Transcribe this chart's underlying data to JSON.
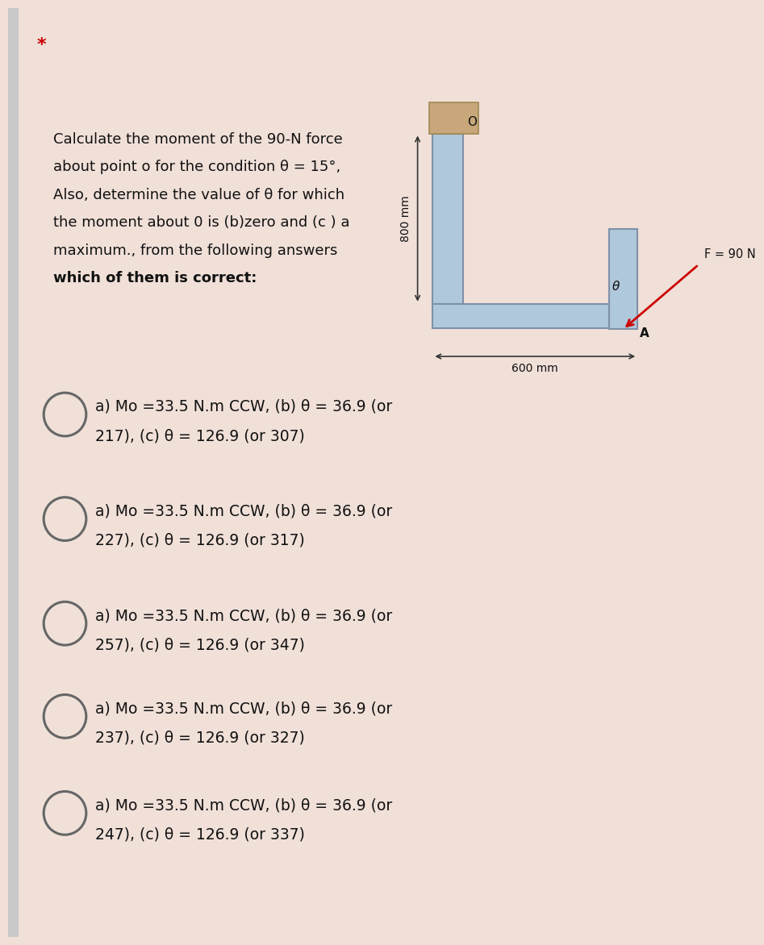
{
  "page_bg_color": "#f0e0d8",
  "card_bg_color": "#ffffff",
  "star_text": "*",
  "star_color": "#cc0000",
  "problem_lines": [
    [
      "Calculate the moment of the 90-N force",
      false
    ],
    [
      "about point o for the condition θ = 15°,",
      false
    ],
    [
      "Also, determine the value of θ for which",
      false
    ],
    [
      "the moment about 0 is (b)zero and (c ) a",
      false
    ],
    [
      "maximum., from the following answers",
      false
    ],
    [
      "which of them is correct:",
      true
    ]
  ],
  "options": [
    [
      "a) Mo =33.5 N.m CCW, (b) θ = 36.9 (or",
      "217), (c) θ = 126.9 (or 307)"
    ],
    [
      "a) Mo =33.5 N.m CCW, (b) θ = 36.9 (or",
      "227), (c) θ = 126.9 (or 317)"
    ],
    [
      "a) Mo =33.5 N.m CCW, (b) θ = 36.9 (or",
      "257), (c) θ = 126.9 (or 347)"
    ],
    [
      "a) Mo =33.5 N.m CCW, (b) θ = 36.9 (or",
      "237), (c) θ = 126.9 (or 327)"
    ],
    [
      "a) Mo =33.5 N.m CCW, (b) θ = 36.9 (or",
      "247), (c) θ = 126.9 (or 337)"
    ]
  ],
  "circle_color": "#666666",
  "text_color": "#111111",
  "beam_color": "#b0c8dc",
  "beam_edge_color": "#8090a8",
  "wall_color": "#c8a87a",
  "wall_edge_color": "#a08850",
  "force_color": "#cc0000",
  "dim_color": "#333333",
  "label_F": "F = 90 N",
  "label_800": "800 mm",
  "label_600": "600 mm",
  "label_O": "O",
  "label_A": "A",
  "label_theta": "θ"
}
